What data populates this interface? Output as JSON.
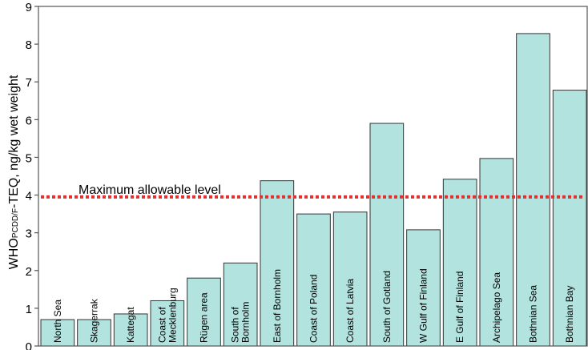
{
  "chart_data": {
    "type": "bar",
    "categories": [
      "North Sea",
      "Skagerrak",
      "Kattegat",
      "Coast of\nMecklenburg",
      "Rügen area",
      "South of\nBornholm",
      "East of Bornholm",
      "Coast of Poland",
      "Coast of Latvia",
      "South of Gotland",
      "W Gulf of Finland",
      "E Gulf of Finland",
      "Archipelago Sea",
      "Bothnian Sea",
      "Bothnian Bay"
    ],
    "values": [
      0.7,
      0.7,
      0.85,
      1.2,
      1.8,
      2.2,
      4.38,
      3.5,
      3.55,
      5.9,
      3.08,
      4.42,
      4.97,
      8.28,
      6.78
    ],
    "ylabel": {
      "prefix": "WHO",
      "sub": "PCDD/F",
      "suffix": "-TEQ, ng/kg wet weight"
    },
    "ylim": [
      0,
      9
    ],
    "yticks": [
      0,
      1,
      2,
      3,
      4,
      5,
      6,
      7,
      8,
      9
    ],
    "reference_line": {
      "value": 3.95,
      "label": "Maximum allowable level",
      "color": "#e03030"
    },
    "bar_color": "#b3e3df",
    "grid": false
  }
}
